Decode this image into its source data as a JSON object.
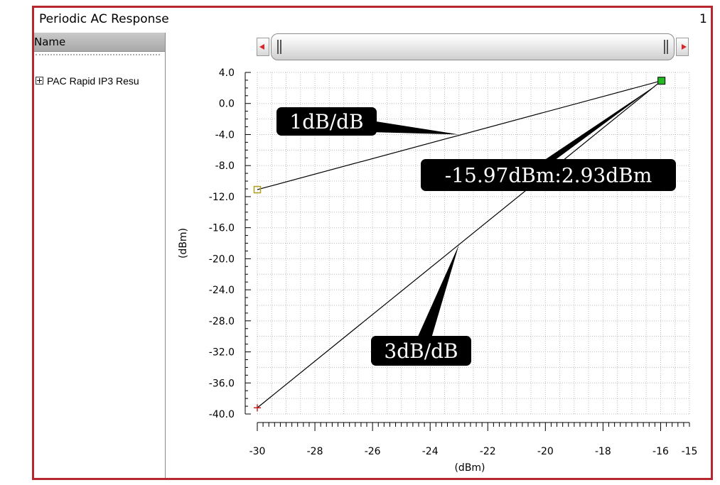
{
  "window": {
    "title": "Periodic AC Response",
    "page_number": "1"
  },
  "browser": {
    "header": "Name",
    "items": [
      {
        "label": "PAC Rapid IP3 Resu"
      }
    ]
  },
  "chart_data": {
    "type": "line",
    "title": "",
    "xlabel": "(dBm)",
    "ylabel": "(dBm)",
    "xlim": [
      -30,
      -15
    ],
    "ylim": [
      -40,
      4
    ],
    "x_ticks": [
      -30,
      -28,
      -26,
      -24,
      -22,
      -20,
      -18,
      -16,
      -15
    ],
    "y_ticks": [
      4.0,
      0.0,
      -4.0,
      -8.0,
      -12.0,
      -16.0,
      -20.0,
      -24.0,
      -28.0,
      -32.0,
      -36.0,
      -40.0
    ],
    "grid": true,
    "series": [
      {
        "name": "",
        "x": [
          -30,
          -15.97
        ],
        "y": [
          -11.1,
          2.93
        ],
        "color": "#000000",
        "start_marker": "square",
        "start_marker_color": "#b0a020"
      },
      {
        "name": "",
        "x": [
          -30,
          -15.97
        ],
        "y": [
          -39.2,
          2.93
        ],
        "color": "#000000",
        "start_marker": "plus",
        "start_marker_color": "#cc2222"
      }
    ],
    "intercept_marker": {
      "x": -15.97,
      "y": 2.93,
      "color": "#22bb22"
    },
    "annotations": [
      {
        "id": "slope-1",
        "text": "1dB/dB",
        "target_x": -23,
        "target_y": -4.0
      },
      {
        "id": "intercept",
        "text": "-15.97dBm:2.93dBm",
        "target_x": -16.1,
        "target_y": 2.5
      },
      {
        "id": "slope-3",
        "text": "3dB/dB",
        "target_x": -23,
        "target_y": -18.2
      }
    ]
  }
}
